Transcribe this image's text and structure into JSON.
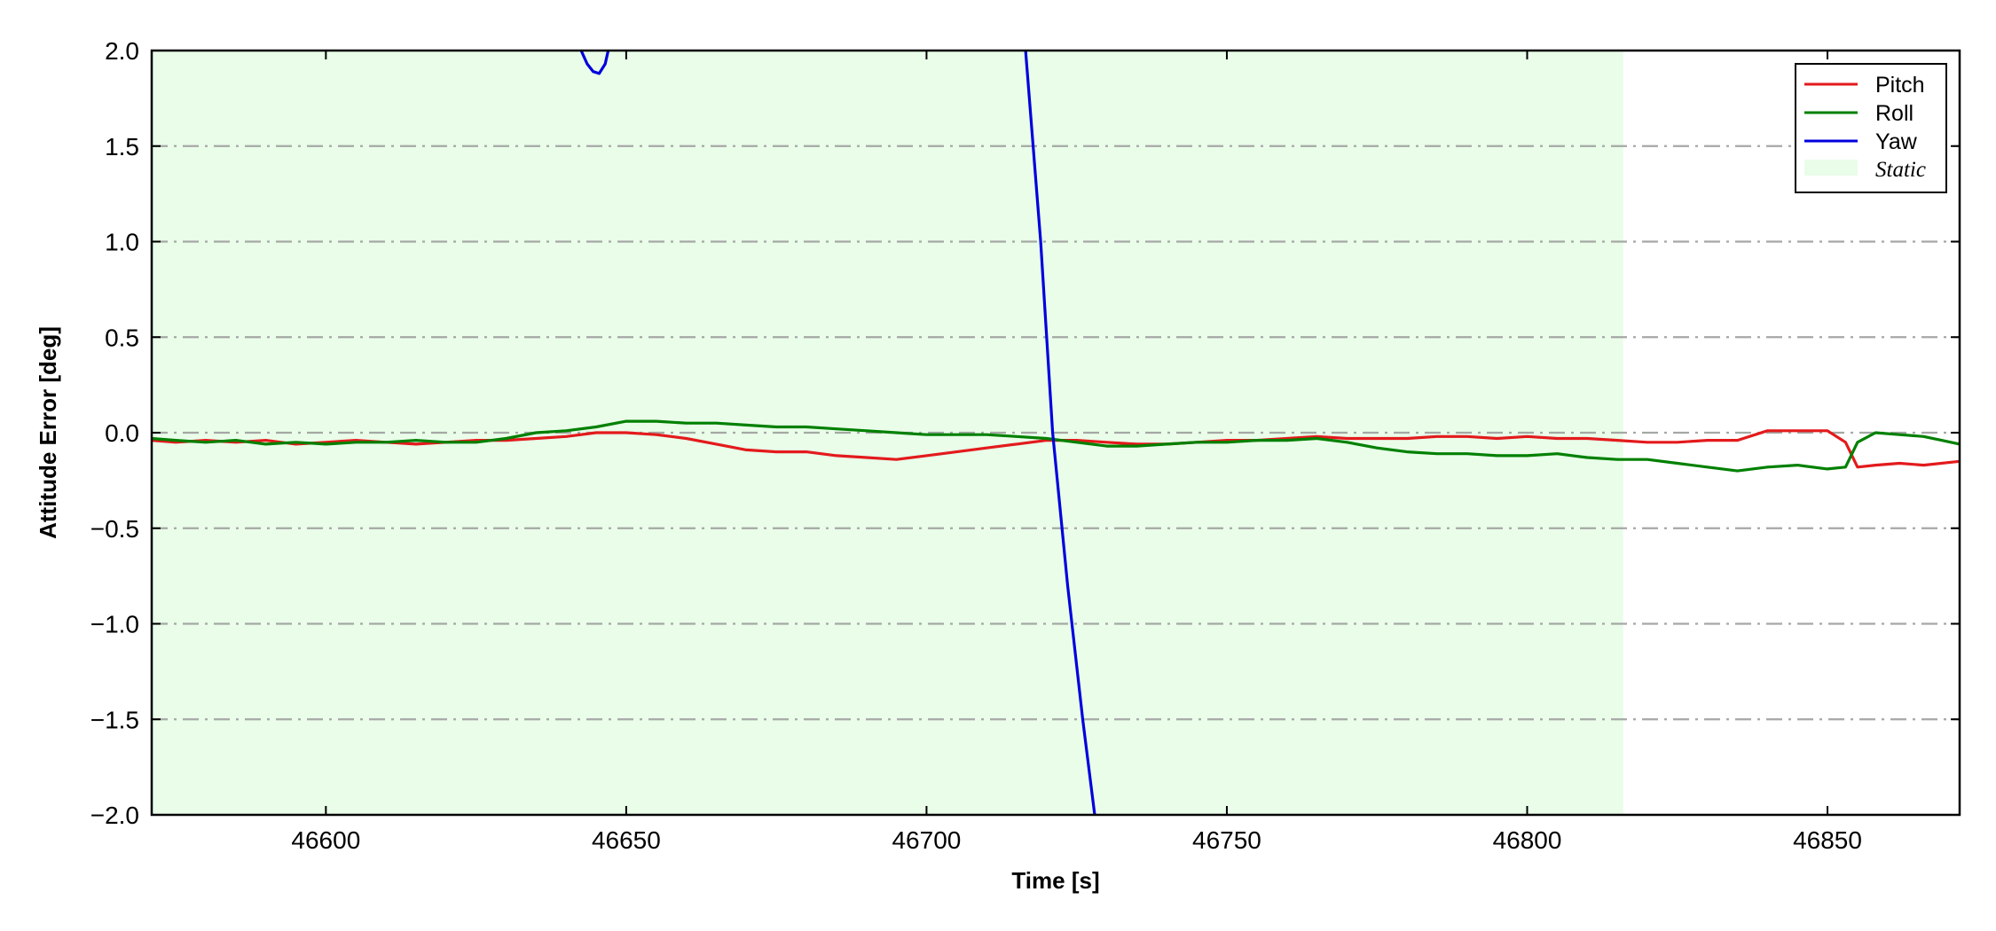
{
  "chart_data": {
    "type": "line",
    "title": "",
    "xlabel": "Time [s]",
    "ylabel": "Attitude Error [deg]",
    "xlim": [
      46571,
      46872
    ],
    "ylim": [
      -2.0,
      2.0
    ],
    "xticks": [
      46600,
      46650,
      46700,
      46750,
      46800,
      46850
    ],
    "xtick_labels": [
      "46600",
      "46650",
      "46700",
      "46750",
      "46800",
      "46850"
    ],
    "yticks": [
      2.0,
      1.5,
      1.0,
      0.5,
      0.0,
      -0.5,
      -1.0,
      -1.5,
      -2.0
    ],
    "ytick_labels": [
      "2.0",
      "1.5",
      "1.0",
      "0.5",
      "0.0",
      "−0.5",
      "−1.0",
      "−1.5",
      "−2.0"
    ],
    "grid": "horizontal dash-dot",
    "legend_position": "top-right",
    "static_region": {
      "label": "Static",
      "x_start": 46571,
      "x_end": 46816,
      "color": "#e9fde9"
    },
    "series": [
      {
        "name": "Pitch",
        "color": "#e31a1c",
        "x": [
          46571,
          46575,
          46580,
          46585,
          46590,
          46595,
          46600,
          46605,
          46610,
          46615,
          46620,
          46625,
          46630,
          46635,
          46640,
          46645,
          46650,
          46655,
          46660,
          46665,
          46670,
          46675,
          46680,
          46685,
          46690,
          46695,
          46700,
          46705,
          46710,
          46715,
          46720,
          46725,
          46730,
          46735,
          46740,
          46745,
          46750,
          46755,
          46760,
          46765,
          46770,
          46775,
          46780,
          46785,
          46790,
          46795,
          46800,
          46805,
          46810,
          46815,
          46820,
          46825,
          46830,
          46835,
          46840,
          46845,
          46850,
          46853,
          46855,
          46858,
          46862,
          46866,
          46872
        ],
        "y": [
          -0.04,
          -0.05,
          -0.04,
          -0.05,
          -0.04,
          -0.06,
          -0.05,
          -0.04,
          -0.05,
          -0.06,
          -0.05,
          -0.04,
          -0.04,
          -0.03,
          -0.02,
          0.0,
          0.0,
          -0.01,
          -0.03,
          -0.06,
          -0.09,
          -0.1,
          -0.1,
          -0.12,
          -0.13,
          -0.14,
          -0.12,
          -0.1,
          -0.08,
          -0.06,
          -0.04,
          -0.04,
          -0.05,
          -0.06,
          -0.06,
          -0.05,
          -0.04,
          -0.04,
          -0.03,
          -0.02,
          -0.03,
          -0.03,
          -0.03,
          -0.02,
          -0.02,
          -0.03,
          -0.02,
          -0.03,
          -0.03,
          -0.04,
          -0.05,
          -0.05,
          -0.04,
          -0.04,
          0.01,
          0.01,
          0.01,
          -0.05,
          -0.18,
          -0.17,
          -0.16,
          -0.17,
          -0.15
        ]
      },
      {
        "name": "Roll",
        "color": "#008000",
        "x": [
          46571,
          46575,
          46580,
          46585,
          46590,
          46595,
          46600,
          46605,
          46610,
          46615,
          46620,
          46625,
          46630,
          46635,
          46640,
          46645,
          46650,
          46655,
          46660,
          46665,
          46670,
          46675,
          46680,
          46685,
          46690,
          46695,
          46700,
          46705,
          46710,
          46715,
          46720,
          46725,
          46730,
          46735,
          46740,
          46745,
          46750,
          46755,
          46760,
          46765,
          46770,
          46775,
          46780,
          46785,
          46790,
          46795,
          46800,
          46805,
          46810,
          46815,
          46820,
          46825,
          46830,
          46835,
          46840,
          46845,
          46850,
          46853,
          46855,
          46858,
          46862,
          46866,
          46869,
          46872
        ],
        "y": [
          -0.03,
          -0.04,
          -0.05,
          -0.04,
          -0.06,
          -0.05,
          -0.06,
          -0.05,
          -0.05,
          -0.04,
          -0.05,
          -0.05,
          -0.03,
          0.0,
          0.01,
          0.03,
          0.06,
          0.06,
          0.05,
          0.05,
          0.04,
          0.03,
          0.03,
          0.02,
          0.01,
          0.0,
          -0.01,
          -0.01,
          -0.01,
          -0.02,
          -0.03,
          -0.05,
          -0.07,
          -0.07,
          -0.06,
          -0.05,
          -0.05,
          -0.04,
          -0.04,
          -0.03,
          -0.05,
          -0.08,
          -0.1,
          -0.11,
          -0.11,
          -0.12,
          -0.12,
          -0.11,
          -0.13,
          -0.14,
          -0.14,
          -0.16,
          -0.18,
          -0.2,
          -0.18,
          -0.17,
          -0.19,
          -0.18,
          -0.05,
          0.0,
          -0.01,
          -0.02,
          -0.04,
          -0.06
        ]
      },
      {
        "name": "Yaw",
        "color": "#0000dd",
        "segments": [
          {
            "x": [
              46642.5,
              46643.5,
              46644.5,
              46645.5,
              46646.5,
              46647.0
            ],
            "y": [
              2.0,
              1.93,
              1.89,
              1.88,
              1.93,
              2.0
            ]
          },
          {
            "x": [
              46716.5,
              46719.0,
              46721.0,
              46723.5,
              46726.0,
              46728.0
            ],
            "y": [
              2.0,
              1.0,
              0.0,
              -0.8,
              -1.5,
              -2.0
            ]
          }
        ]
      }
    ]
  }
}
